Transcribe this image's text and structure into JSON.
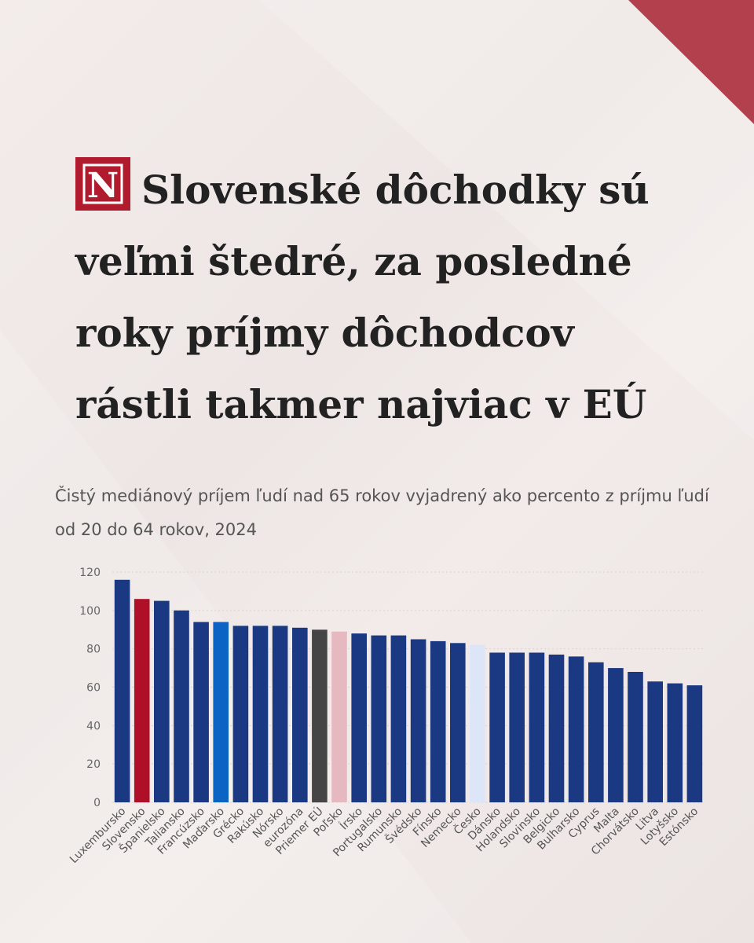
{
  "header": {
    "logo_letter": "N",
    "title": "Slovenské dôchodky sú veľmi štedré, za posledné roky príjmy dôchodcov rástli takmer najviac v EÚ",
    "subtitle": "Čistý mediánový príjem ľudí nad 65 rokov vyjadrený ako percento z príjmu ľudí od 20 do 64 rokov, 2024"
  },
  "colors": {
    "default": "#1b3883",
    "slovensko": "#b01027",
    "madarsko": "#0b63c4",
    "priemer": "#454545",
    "polsko": "#e6b8c0",
    "cesko": "#dce6f8",
    "brand": "#a31626"
  },
  "chart_data": {
    "type": "bar",
    "ylim": [
      0,
      120
    ],
    "yticks": [
      0,
      20,
      40,
      60,
      80,
      100,
      120
    ],
    "grid": true,
    "categories": [
      "Luxembursko",
      "Slovensko",
      "Španielsko",
      "Taliansko",
      "Francúzsko",
      "Maďarsko",
      "Grécko",
      "Rakúsko",
      "Nórsko",
      "eurozóna",
      "Priemer EÚ",
      "Poľsko",
      "Írsko",
      "Portugalsko",
      "Rumunsko",
      "Švédsko",
      "Fínsko",
      "Nemecko",
      "Česko",
      "Dánsko",
      "Holandsko",
      "Slovinsko",
      "Belgicko",
      "Bulharsko",
      "Cyprus",
      "Malta",
      "Chorvátsko",
      "Litva",
      "Lotyšsko",
      "Estónsko"
    ],
    "values": [
      116,
      106,
      105,
      100,
      94,
      94,
      92,
      92,
      92,
      91,
      90,
      89,
      88,
      87,
      87,
      85,
      84,
      83,
      82,
      78,
      78,
      78,
      77,
      76,
      73,
      70,
      68,
      63,
      62,
      61
    ],
    "highlight": {
      "Slovensko": "slovensko",
      "Maďarsko": "madarsko",
      "Priemer EÚ": "priemer",
      "Poľsko": "polsko",
      "Česko": "cesko"
    }
  }
}
